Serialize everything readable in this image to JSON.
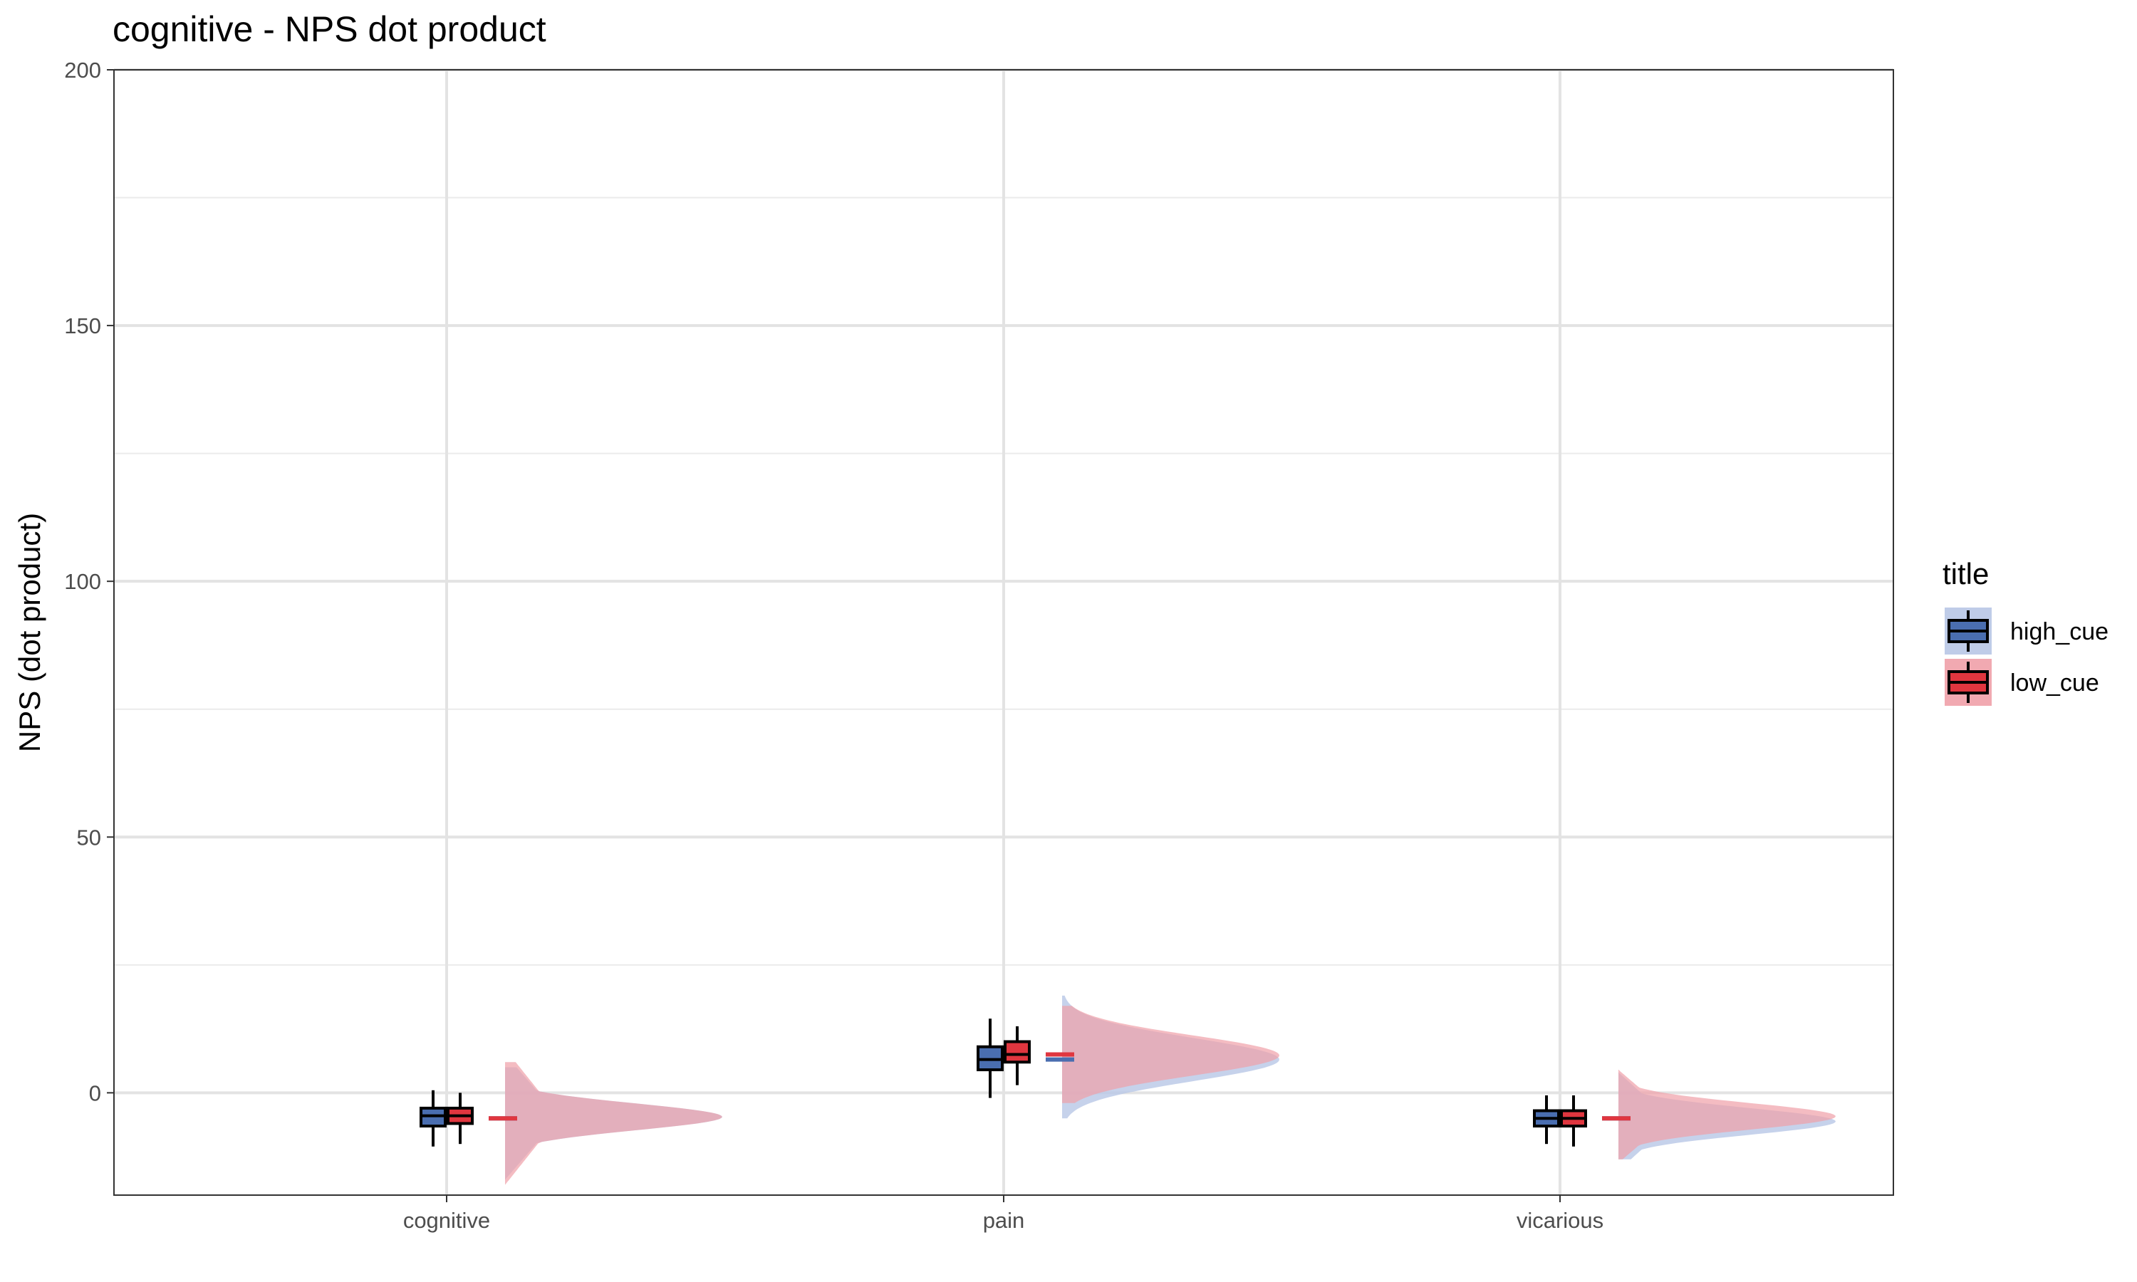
{
  "chart_data": {
    "type": "box",
    "title": "cognitive  - NPS dot product",
    "xlabel": "",
    "ylabel": "NPS (dot product)",
    "ylim": [
      -20,
      200
    ],
    "yticks": [
      0,
      50,
      100,
      150,
      200
    ],
    "categories": [
      "cognitive",
      "pain",
      "vicarious"
    ],
    "grid": true,
    "legend": {
      "title": "title",
      "position": "right"
    },
    "colors": {
      "high_cue": "#4a6eb0",
      "low_cue": "#e0363f",
      "high_cue_fill": "#b8c7e6",
      "low_cue_fill": "#f0a0a8",
      "overlap_fill": "#c99aaa"
    },
    "series": [
      {
        "name": "high_cue",
        "box": [
          {
            "category": "cognitive",
            "min": -10.5,
            "q1": -6.5,
            "median": -4.5,
            "q3": -3,
            "max": 0.5
          },
          {
            "category": "pain",
            "min": -1,
            "q1": 4.5,
            "median": 6.5,
            "q3": 9,
            "max": 14.5
          },
          {
            "category": "vicarious",
            "min": -10,
            "q1": -6.5,
            "median": -5,
            "q3": -3.5,
            "max": -0.5
          }
        ],
        "mean": [
          {
            "category": "cognitive",
            "value": -5
          },
          {
            "category": "pain",
            "value": 6.5
          },
          {
            "category": "vicarious",
            "value": -5
          }
        ],
        "density": [
          {
            "category": "cognitive",
            "ymin": -17,
            "ymax": 5,
            "mode": -4.7,
            "spread": 2.6
          },
          {
            "category": "pain",
            "ymin": -5,
            "ymax": 19,
            "mode": 6.5,
            "spread": 4.2
          },
          {
            "category": "vicarious",
            "ymin": -13,
            "ymax": 4,
            "mode": -5.6,
            "spread": 2.6
          }
        ]
      },
      {
        "name": "low_cue",
        "box": [
          {
            "category": "cognitive",
            "min": -10,
            "q1": -6,
            "median": -4.5,
            "q3": -3,
            "max": 0
          },
          {
            "category": "pain",
            "min": 1.5,
            "q1": 6,
            "median": 7.5,
            "q3": 10,
            "max": 13
          },
          {
            "category": "vicarious",
            "min": -10.5,
            "q1": -6.5,
            "median": -5,
            "q3": -3.5,
            "max": -0.5
          }
        ],
        "mean": [
          {
            "category": "cognitive",
            "value": -5
          },
          {
            "category": "pain",
            "value": 7.5
          },
          {
            "category": "vicarious",
            "value": -5
          }
        ],
        "density": [
          {
            "category": "cognitive",
            "ymin": -18,
            "ymax": 6,
            "mode": -4.7,
            "spread": 2.6
          },
          {
            "category": "pain",
            "ymin": -2,
            "ymax": 17,
            "mode": 7.3,
            "spread": 3.9
          },
          {
            "category": "vicarious",
            "ymin": -13,
            "ymax": 4.5,
            "mode": -4.6,
            "spread": 2.6
          }
        ]
      }
    ]
  }
}
